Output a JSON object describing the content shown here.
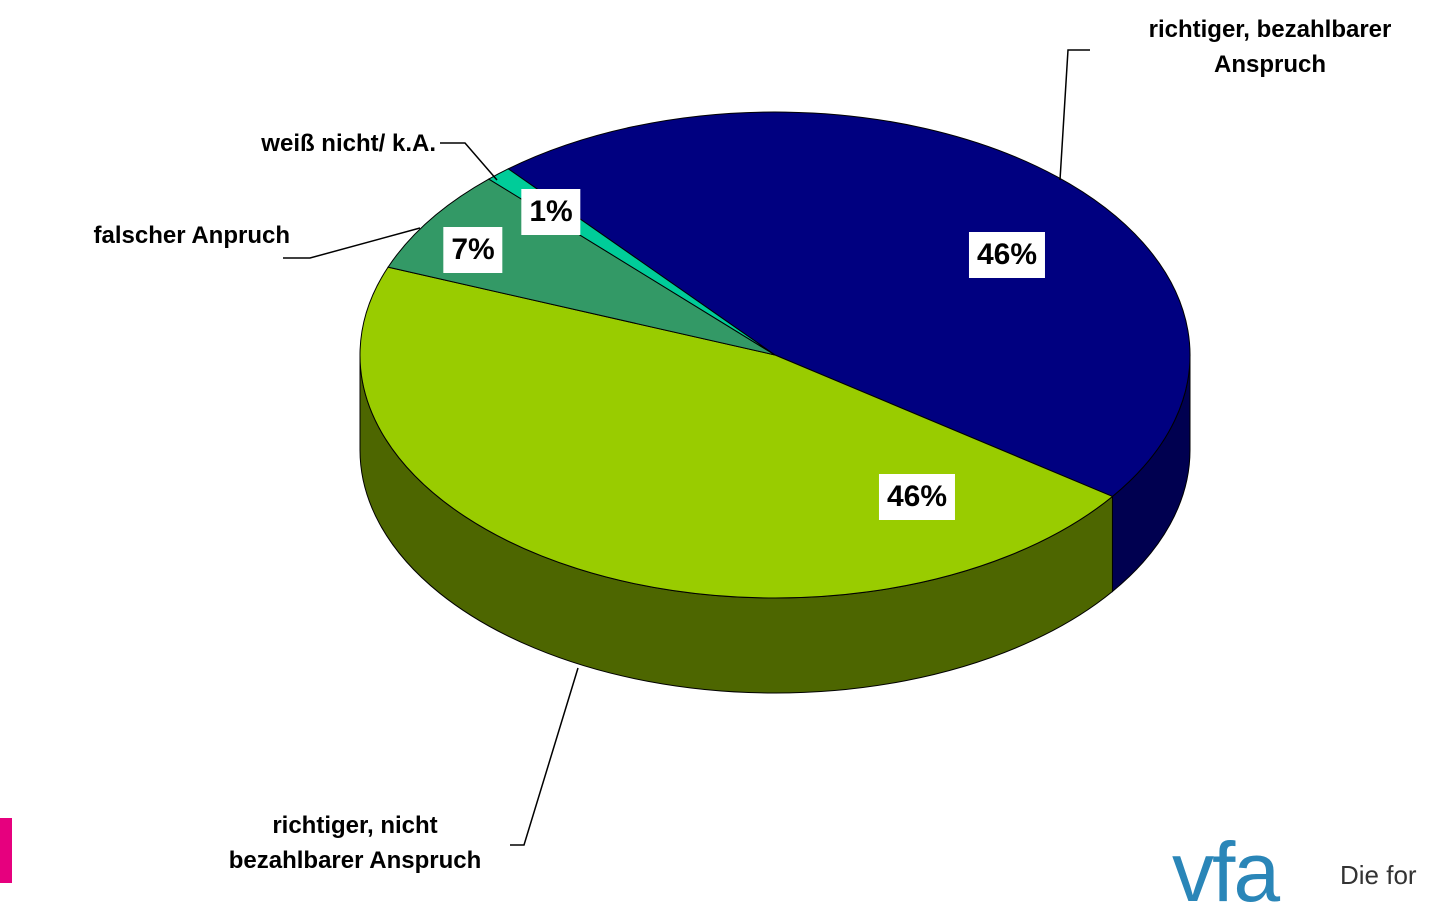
{
  "chart_data": {
    "type": "pie3d",
    "categories": [
      "richtiger, bezahlbarer Anspruch",
      "richtiger, nicht bezahlbarer Anspruch",
      "falscher Anpruch",
      "weiß nicht/ k.A."
    ],
    "values": [
      46,
      46,
      7,
      1
    ],
    "value_labels": [
      "46%",
      "46%",
      "7%",
      "1%"
    ],
    "colors": [
      "#000080",
      "#99cc00",
      "#339966",
      "#00cc99"
    ],
    "side_colors": [
      "#000050",
      "#4d6600",
      "#1f5c3d",
      "#007a5c"
    ]
  },
  "footer": {
    "logo": "vfa",
    "tagline": "Die for"
  }
}
